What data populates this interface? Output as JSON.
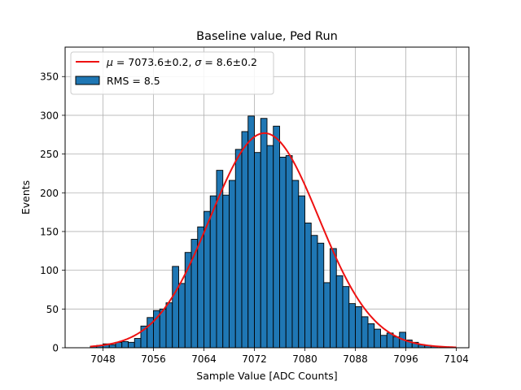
{
  "chart_data": {
    "type": "histogram",
    "title": "Baseline value, Ped Run",
    "xlabel": "Sample Value [ADC Counts]",
    "ylabel": "Events",
    "xlim": [
      7042,
      7106
    ],
    "ylim": [
      0,
      388
    ],
    "xticks": [
      7048,
      7056,
      7064,
      7072,
      7080,
      7088,
      7096,
      7104
    ],
    "yticks": [
      0,
      50,
      100,
      150,
      200,
      250,
      300,
      350
    ],
    "grid": true,
    "bin_start": 7046,
    "bin_width": 1,
    "counts": [
      2,
      3,
      5,
      4,
      7,
      8,
      7,
      12,
      28,
      39,
      48,
      50,
      58,
      105,
      83,
      123,
      140,
      156,
      176,
      196,
      229,
      197,
      216,
      256,
      279,
      299,
      252,
      296,
      261,
      286,
      246,
      248,
      216,
      196,
      161,
      145,
      135,
      84,
      128,
      93,
      79,
      57,
      53,
      40,
      31,
      24,
      16,
      19,
      14,
      20,
      10,
      7,
      4,
      3,
      2
    ],
    "fit": {
      "mu": 7073.6,
      "sigma": 8.6,
      "amplitude": 277,
      "x_range": [
        7046,
        7104
      ],
      "color": "#ee1111",
      "label": "$\\mu = 7073.6 \\pm 0.2$, $\\sigma = 8.6 \\pm 0.2$"
    },
    "bar_color": "#1f77b4",
    "legend": {
      "location": "top-left",
      "entries": [
        {
          "kind": "line",
          "color": "#ee1111",
          "mu_symbol": "μ",
          "sigma_symbol": "σ",
          "text_mu": " = 7073.6±0.2, ",
          "text_sigma": " = 8.6±0.2"
        },
        {
          "kind": "patch",
          "color": "#1f77b4",
          "text": "RMS = 8.5"
        }
      ]
    }
  }
}
